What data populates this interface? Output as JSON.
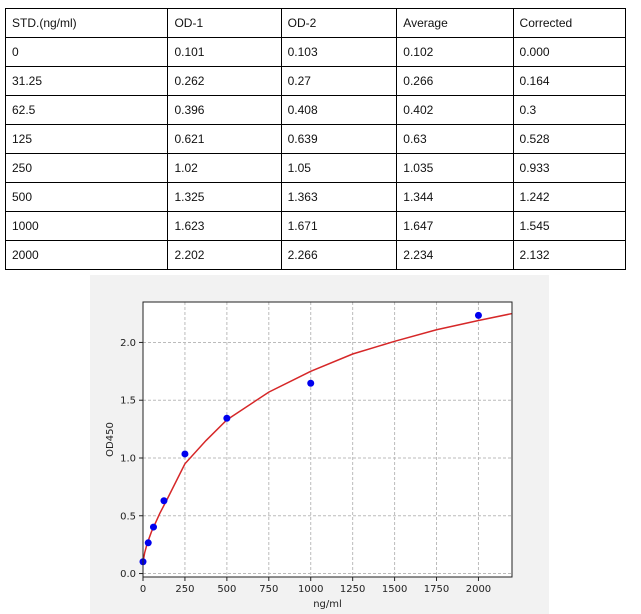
{
  "table": {
    "headers": [
      "STD.(ng/ml)",
      "OD-1",
      "OD-2",
      "Average",
      "Corrected"
    ],
    "rows": [
      [
        "0",
        "0.101",
        "0.103",
        "0.102",
        "0.000"
      ],
      [
        "31.25",
        "0.262",
        "0.27",
        "0.266",
        "0.164"
      ],
      [
        "62.5",
        "0.396",
        "0.408",
        "0.402",
        "0.3"
      ],
      [
        "125",
        "0.621",
        "0.639",
        "0.63",
        "0.528"
      ],
      [
        "250",
        "1.02",
        "1.05",
        "1.035",
        "0.933"
      ],
      [
        "500",
        "1.325",
        "1.363",
        "1.344",
        "1.242"
      ],
      [
        "1000",
        "1.623",
        "1.671",
        "1.647",
        "1.545"
      ],
      [
        "2000",
        "2.202",
        "2.266",
        "2.234",
        "2.132"
      ]
    ]
  },
  "chart_data": {
    "type": "scatter",
    "xlabel": "ng/ml",
    "ylabel": "OD450",
    "xlim": [
      0,
      2200
    ],
    "ylim": [
      -0.03,
      2.35
    ],
    "xticks": [
      0,
      250,
      500,
      750,
      1000,
      1250,
      1500,
      1750,
      2000
    ],
    "yticks": [
      0.0,
      0.5,
      1.0,
      1.5,
      2.0
    ],
    "grid": true,
    "points": {
      "x": [
        0,
        31.25,
        62.5,
        125,
        250,
        500,
        1000,
        2000
      ],
      "y": [
        0.102,
        0.266,
        0.402,
        0.63,
        1.035,
        1.344,
        1.647,
        2.234
      ],
      "color": "#0000ee"
    },
    "fit_curve": {
      "x": [
        0,
        10,
        25,
        50,
        100,
        150,
        250,
        375,
        500,
        750,
        1000,
        1250,
        1500,
        1750,
        2000,
        2200
      ],
      "y": [
        0.1,
        0.18,
        0.26,
        0.36,
        0.52,
        0.66,
        0.95,
        1.15,
        1.33,
        1.57,
        1.75,
        1.9,
        2.01,
        2.11,
        2.19,
        2.25
      ],
      "color": "#d62728"
    }
  }
}
